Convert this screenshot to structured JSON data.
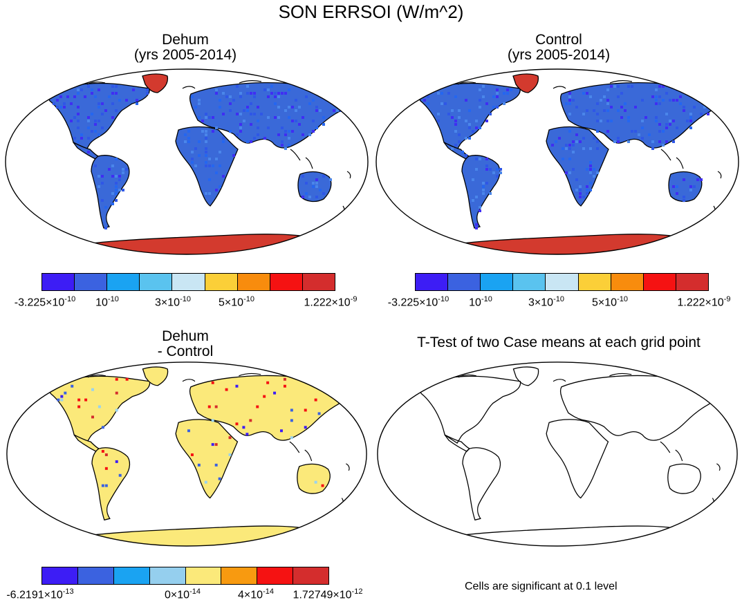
{
  "figure_title": "SON ERRSOI (W/m^2)",
  "panels": [
    {
      "id": "dehum",
      "title_line1": "Dehum",
      "title_line2": "(yrs 2005-2014)",
      "land_color": "#3a69d8",
      "greenland_color": "#d33a2e",
      "antarctica_color": "#d33a2e"
    },
    {
      "id": "control",
      "title_line1": "Control",
      "title_line2": "(yrs 2005-2014)",
      "land_color": "#3a69d8",
      "greenland_color": "#d33a2e",
      "antarctica_color": "#d33a2e"
    },
    {
      "id": "diff",
      "title_line1": "Dehum",
      "title_line2": "- Control",
      "land_color": "#fbe97a",
      "greenland_color": "#fbe97a",
      "antarctica_color": "#fbe97a"
    },
    {
      "id": "ttest",
      "title_line1": "T-Test of two Case means at each grid point",
      "title_line2": "",
      "land_color": "none",
      "greenland_color": "none",
      "antarctica_color": "none"
    }
  ],
  "colorbar_top": {
    "colors": [
      "#3d1df5",
      "#3b62e0",
      "#1aa3f2",
      "#5ac3ef",
      "#c9e6f4",
      "#fbcf38",
      "#f88c0d",
      "#f51212",
      "#d42d2d"
    ],
    "labels": [
      {
        "base": "-3.225×10",
        "exp": "-10"
      },
      {
        "base": "10",
        "exp": "-10"
      },
      {
        "base": "3×10",
        "exp": "-10"
      },
      {
        "base": "5×10",
        "exp": "-10"
      },
      {
        "base": "1.222×10",
        "exp": "-9"
      }
    ]
  },
  "colorbar_bottom": {
    "colors": [
      "#3d1df5",
      "#3b62e0",
      "#1aa3f2",
      "#95cfee",
      "#fbe97a",
      "#f89a10",
      "#f51212",
      "#d42d2d"
    ],
    "labels": [
      {
        "base": "-6.2191×10",
        "exp": "-13"
      },
      {
        "base": "0×10",
        "exp": "-14"
      },
      {
        "base": "4×10",
        "exp": "-14"
      },
      {
        "base": "1.72749×10",
        "exp": "-12"
      }
    ]
  },
  "significance_note": "Cells are significant at 0.1 level"
}
